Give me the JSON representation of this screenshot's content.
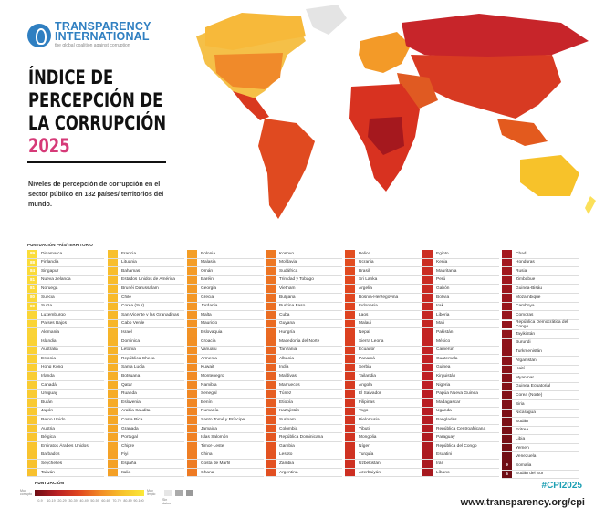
{
  "org": {
    "name_line1": "TRANSPARENCY",
    "name_line2": "INTERNATIONAL",
    "tagline": "the global coalition against corruption"
  },
  "title": {
    "line1": "ÍNDICE DE",
    "line2": "PERCEPCIÓN DE",
    "line3": "LA CORRUPCIÓN",
    "year": "2025"
  },
  "subtitle": "Niveles de percepción de corrupción en el sector público en 182 países/ territorios del mundo.",
  "chart_data": {
    "type": "table",
    "title": "Índice de Percepción de la Corrupción 2025",
    "header": "PUNTUACIÓN PAÍS/TERRITORIO",
    "columns": [
      [
        {
          "score": "89",
          "name": "Dinamarca"
        },
        {
          "score": "88",
          "name": "Finlandia"
        },
        {
          "score": "84",
          "name": "Singapur"
        },
        {
          "score": "81",
          "name": "Nueva Zelanda"
        },
        {
          "score": "81",
          "name": "Noruega"
        },
        {
          "score": "80",
          "name": "Suecia"
        },
        {
          "score": "80",
          "name": "Suiza"
        },
        {
          "name": "Luxemburgo"
        },
        {
          "name": "Países Bajos"
        },
        {
          "name": "Alemania"
        },
        {
          "name": "Islandia"
        },
        {
          "name": "Australia"
        },
        {
          "name": "Estonia"
        },
        {
          "name": "Hong Kong"
        },
        {
          "name": "Irlanda"
        },
        {
          "name": "Canadá"
        },
        {
          "name": "Uruguay"
        },
        {
          "name": "Bután"
        },
        {
          "name": "Japón"
        },
        {
          "name": "Reino Unido"
        },
        {
          "name": "Austria"
        },
        {
          "name": "Bélgica"
        },
        {
          "name": "Emiratos Árabes Unidos"
        },
        {
          "name": "Barbados"
        },
        {
          "name": "Seychelles"
        },
        {
          "name": "Taiwán"
        }
      ],
      [
        {
          "name": "Francia"
        },
        {
          "name": "Lituania"
        },
        {
          "name": "Bahamas"
        },
        {
          "name": "Estados Unidos de América"
        },
        {
          "name": "Brunéi Darussalam"
        },
        {
          "name": "Chile"
        },
        {
          "name": "Corea (Sur)"
        },
        {
          "name": "San Vicente y las Granadinas"
        },
        {
          "name": "Cabo Verde"
        },
        {
          "name": "Israel"
        },
        {
          "name": "Dominica"
        },
        {
          "name": "Letonia"
        },
        {
          "name": "República Checa"
        },
        {
          "name": "Santa Lucía"
        },
        {
          "name": "Botsuana"
        },
        {
          "name": "Qatar"
        },
        {
          "name": "Ruanda"
        },
        {
          "name": "Eslovenia"
        },
        {
          "name": "Arabia Saudita"
        },
        {
          "name": "Costa Rica"
        },
        {
          "name": "Granada"
        },
        {
          "name": "Portugal"
        },
        {
          "name": "Chipre"
        },
        {
          "name": "Fiyi"
        },
        {
          "name": "España"
        },
        {
          "name": "Italia"
        }
      ],
      [
        {
          "name": "Polonia"
        },
        {
          "name": "Malasia"
        },
        {
          "name": "Omán"
        },
        {
          "name": "Baréin"
        },
        {
          "name": "Georgia"
        },
        {
          "name": "Grecia"
        },
        {
          "name": "Jordania"
        },
        {
          "name": "Malta"
        },
        {
          "name": "Mauricio"
        },
        {
          "name": "Eslovaquia"
        },
        {
          "name": "Croacia"
        },
        {
          "name": "Vanuatu"
        },
        {
          "name": "Armenia"
        },
        {
          "name": "Kuwait"
        },
        {
          "name": "Montenegro"
        },
        {
          "name": "Namibia"
        },
        {
          "name": "Senegal"
        },
        {
          "name": "Benín"
        },
        {
          "name": "Rumanía"
        },
        {
          "name": "Santo Tomé y Príncipe"
        },
        {
          "name": "Jamaica"
        },
        {
          "name": "Islas Salomón"
        },
        {
          "name": "Timor-Leste"
        },
        {
          "name": "China"
        },
        {
          "name": "Costa de Marfil"
        },
        {
          "name": "Ghana"
        }
      ],
      [
        {
          "name": "Kosovo"
        },
        {
          "name": "Moldavia"
        },
        {
          "name": "Sudáfrica"
        },
        {
          "name": "Trinidad y Tobago"
        },
        {
          "name": "Vietnam"
        },
        {
          "name": "Bulgaria"
        },
        {
          "name": "Burkina Faso"
        },
        {
          "name": "Cuba"
        },
        {
          "name": "Guyana"
        },
        {
          "name": "Hungría"
        },
        {
          "name": "Macedonia del Norte"
        },
        {
          "name": "Tanzania"
        },
        {
          "name": "Albania"
        },
        {
          "name": "India"
        },
        {
          "name": "Maldivas"
        },
        {
          "name": "Marruecos"
        },
        {
          "name": "Túnez"
        },
        {
          "name": "Etiopía"
        },
        {
          "name": "Kazajistán"
        },
        {
          "name": "Surinam"
        },
        {
          "name": "Colombia"
        },
        {
          "name": "República Dominicana"
        },
        {
          "name": "Gambia"
        },
        {
          "name": "Lesoto"
        },
        {
          "name": "Zambia"
        },
        {
          "name": "Argentina"
        }
      ],
      [
        {
          "name": "Belice"
        },
        {
          "name": "Ucrania"
        },
        {
          "name": "Brasil"
        },
        {
          "name": "Sri Lanka"
        },
        {
          "name": "Argelia"
        },
        {
          "name": "Bosnia-Herzegovina"
        },
        {
          "name": "Indonesia"
        },
        {
          "name": "Laos"
        },
        {
          "name": "Malaui"
        },
        {
          "name": "Nepal"
        },
        {
          "name": "Sierra Leona"
        },
        {
          "name": "Ecuador"
        },
        {
          "name": "Panamá"
        },
        {
          "name": "Serbia"
        },
        {
          "name": "Tailandia"
        },
        {
          "name": "Angola"
        },
        {
          "name": "El Salvador"
        },
        {
          "name": "Filipinas"
        },
        {
          "name": "Togo"
        },
        {
          "name": "Bielorrusia"
        },
        {
          "name": "Yibuti"
        },
        {
          "name": "Mongolia"
        },
        {
          "name": "Níger"
        },
        {
          "name": "Turquía"
        },
        {
          "name": "Uzbekistán"
        },
        {
          "name": "Azerbaiyán"
        }
      ],
      [
        {
          "name": "Egipto"
        },
        {
          "name": "Kenia"
        },
        {
          "name": "Mauritania"
        },
        {
          "name": "Perú"
        },
        {
          "name": "Gabón"
        },
        {
          "name": "Bolivia"
        },
        {
          "name": "Irak"
        },
        {
          "name": "Liberia"
        },
        {
          "name": "Mali"
        },
        {
          "name": "Pakistán"
        },
        {
          "name": "México"
        },
        {
          "name": "Camerún"
        },
        {
          "name": "Guatemala"
        },
        {
          "name": "Guinea"
        },
        {
          "name": "Kirguistán"
        },
        {
          "name": "Nigeria"
        },
        {
          "name": "Papúa Nueva Guinea"
        },
        {
          "name": "Madagascar"
        },
        {
          "name": "Uganda"
        },
        {
          "name": "Bangladés"
        },
        {
          "name": "República Centroafricana"
        },
        {
          "name": "Paraguay"
        },
        {
          "name": "República del Congo"
        },
        {
          "name": "Esuatini"
        },
        {
          "name": "Irán"
        },
        {
          "name": "Líbano"
        }
      ],
      [
        {
          "name": "Chad"
        },
        {
          "name": "Honduras"
        },
        {
          "name": "Rusia"
        },
        {
          "name": "Zimbabue"
        },
        {
          "name": "Guinea-Bisáu"
        },
        {
          "name": "Mozambique"
        },
        {
          "name": "Camboya"
        },
        {
          "name": "Comoras"
        },
        {
          "name": "República Democrática del Congo"
        },
        {
          "name": "Tayikistán"
        },
        {
          "name": "Burundi"
        },
        {
          "name": "Turkmenistán"
        },
        {
          "name": "Afganistán"
        },
        {
          "name": "Haití"
        },
        {
          "name": "Myanmar"
        },
        {
          "name": "Guinea Ecuatorial"
        },
        {
          "name": "Corea (Norte)"
        },
        {
          "name": "Siria"
        },
        {
          "name": "Nicaragua"
        },
        {
          "name": "Sudán"
        },
        {
          "name": "Eritrea"
        },
        {
          "name": "Libia"
        },
        {
          "name": "Yemen"
        },
        {
          "name": "Venezuela"
        },
        {
          "name": "Somalia",
          "score": "9"
        },
        {
          "name": "Sudán del Sur",
          "score": "5"
        }
      ]
    ]
  },
  "legend": {
    "title": "PUNTUACIÓN",
    "low": "Muy corrupto",
    "high": "Muy limpio",
    "ticks": [
      "0-9",
      "10-19",
      "20-29",
      "30-39",
      "40-49",
      "50-59",
      "60-69",
      "70-79",
      "80-89",
      "90-100"
    ],
    "nodata": "Sin datos"
  },
  "colors": {
    "scale": [
      "#6e0d14",
      "#b81f23",
      "#e0451f",
      "#f28a25",
      "#f7c22a",
      "#fbe93a"
    ],
    "accent": "#d63a78",
    "hashtag": "#1c9fb3"
  },
  "footer": {
    "hashtag": "#CPI2025",
    "url": "www.transparency.org/cpi"
  }
}
